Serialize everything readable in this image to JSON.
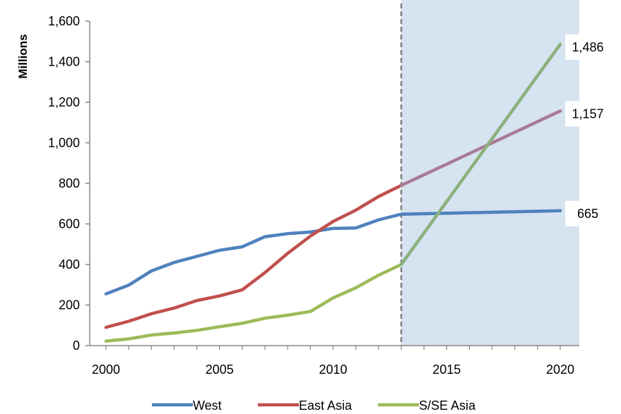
{
  "chart_data": {
    "type": "line",
    "title": "",
    "xlabel": "",
    "ylabel": "Millions",
    "xlim": [
      2000,
      2020
    ],
    "ylim": [
      0,
      1600
    ],
    "x_ticks": [
      2000,
      2005,
      2010,
      2015,
      2020
    ],
    "x_tick_labels": [
      "2000",
      "2005",
      "2010",
      "2015",
      "2020"
    ],
    "y_ticks": [
      0,
      200,
      400,
      600,
      800,
      1000,
      1200,
      1400,
      1600
    ],
    "y_tick_labels": [
      "0",
      "200",
      "400",
      "600",
      "800",
      "1,000",
      "1,200",
      "1,400",
      "1,600"
    ],
    "grid": false,
    "legend_position": "bottom",
    "forecast_divider_x": 2013,
    "forecast_region": [
      2013,
      2020
    ],
    "forecast_color": "#d6e3f0",
    "series": [
      {
        "name": "West",
        "color": "#4f81bd",
        "x": [
          2000,
          2001,
          2002,
          2003,
          2004,
          2005,
          2006,
          2007,
          2008,
          2009,
          2010,
          2011,
          2012,
          2013,
          2020
        ],
        "y": [
          255,
          298,
          368,
          410,
          440,
          470,
          487,
          537,
          552,
          560,
          578,
          580,
          620,
          648,
          665
        ],
        "end_label": "665"
      },
      {
        "name": "East Asia",
        "color": "#c0504d",
        "forecast_color": "#a97a94",
        "x": [
          2000,
          2001,
          2002,
          2003,
          2004,
          2005,
          2006,
          2007,
          2008,
          2009,
          2010,
          2011,
          2012,
          2013,
          2020
        ],
        "y": [
          90,
          120,
          157,
          185,
          222,
          245,
          275,
          360,
          455,
          540,
          612,
          668,
          735,
          790,
          1157
        ],
        "end_label": "1,157"
      },
      {
        "name": "S/SE Asia",
        "color": "#9bbb59",
        "forecast_color": "#8bb17e",
        "x": [
          2000,
          2001,
          2002,
          2003,
          2004,
          2005,
          2006,
          2007,
          2008,
          2009,
          2010,
          2011,
          2012,
          2013,
          2020
        ],
        "y": [
          22,
          33,
          52,
          62,
          75,
          93,
          110,
          135,
          150,
          168,
          235,
          285,
          347,
          400,
          1486
        ],
        "end_label": "1,486"
      }
    ]
  }
}
